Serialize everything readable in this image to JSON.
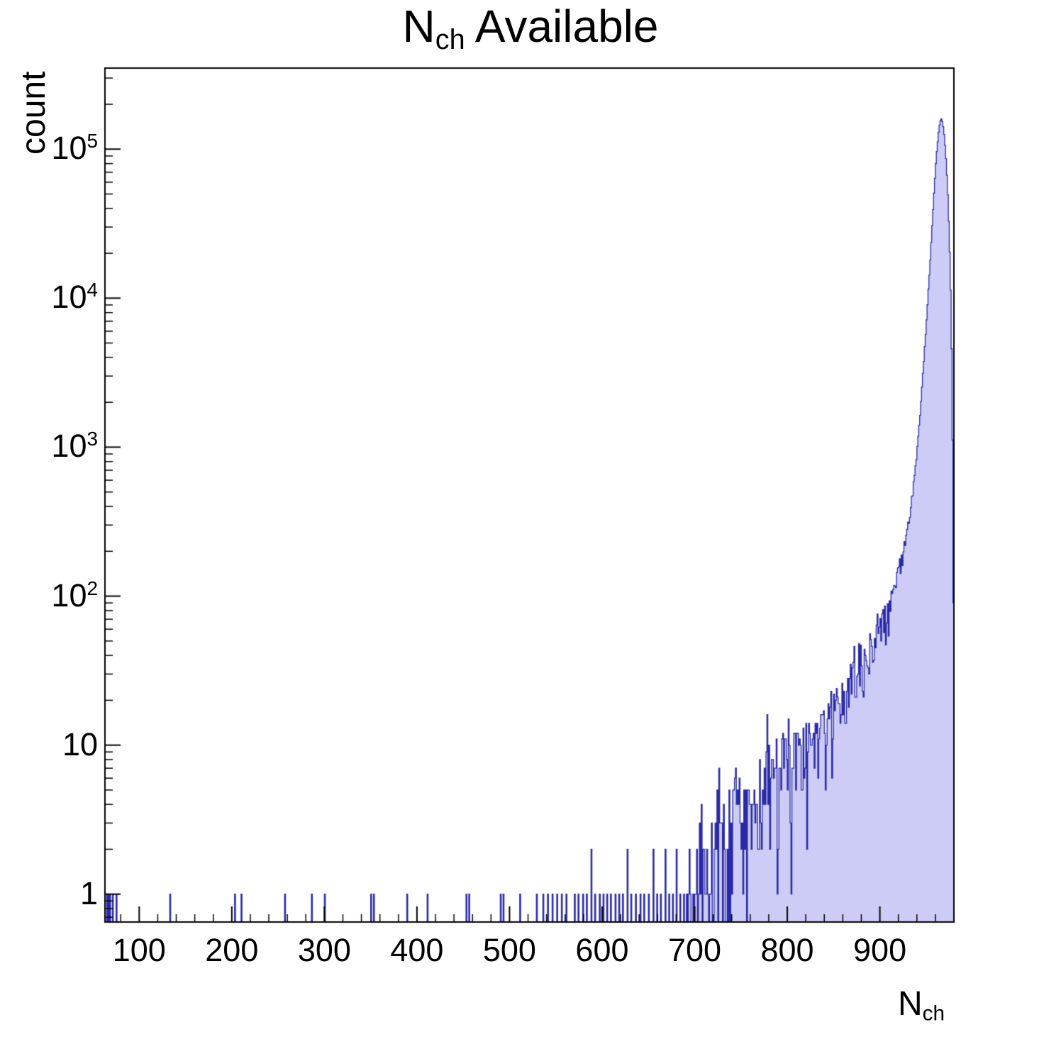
{
  "chart_data": {
    "type": "histogram",
    "title": "N_ch Available",
    "title_parts": {
      "main": "N",
      "sub": "ch",
      "rest": " Available"
    },
    "xlabel": "N_ch",
    "xlabel_parts": {
      "main": "N",
      "sub": "ch"
    },
    "ylabel": "count",
    "x_range": [
      63,
      980
    ],
    "y_range": [
      0.65,
      350000
    ],
    "y_scale": "log",
    "bin_width": 1,
    "x_major_ticks": [
      100,
      200,
      300,
      400,
      500,
      600,
      700,
      800,
      900
    ],
    "x_minor_step": 20,
    "y_major_ticks": [
      1,
      10,
      100,
      1000,
      10000,
      100000
    ],
    "grid": false,
    "legend": "none",
    "peak": {
      "x": 965,
      "count": 160000
    },
    "sparse_bins": [
      [
        63,
        1
      ],
      [
        64,
        1
      ],
      [
        66,
        1
      ],
      [
        68,
        1
      ],
      [
        71,
        1
      ],
      [
        75,
        1
      ],
      [
        133,
        1
      ],
      [
        203,
        1
      ],
      [
        210,
        1
      ],
      [
        257,
        1
      ],
      [
        286,
        1
      ],
      [
        300,
        1
      ],
      [
        350,
        1
      ],
      [
        353,
        1
      ],
      [
        389,
        1
      ],
      [
        411,
        1
      ],
      [
        453,
        1
      ],
      [
        456,
        1
      ],
      [
        490,
        1
      ],
      [
        493,
        1
      ],
      [
        511,
        1
      ],
      [
        529,
        1
      ],
      [
        536,
        1
      ],
      [
        541,
        1
      ],
      [
        546,
        1
      ],
      [
        551,
        1
      ],
      [
        556,
        1
      ],
      [
        561,
        1
      ],
      [
        570,
        1
      ],
      [
        574,
        1
      ],
      [
        579,
        1
      ],
      [
        583,
        1
      ],
      [
        588,
        2
      ],
      [
        592,
        1
      ],
      [
        597,
        1
      ],
      [
        601,
        1
      ],
      [
        605,
        1
      ],
      [
        609,
        1
      ],
      [
        614,
        1
      ],
      [
        618,
        1
      ],
      [
        622,
        1
      ],
      [
        627,
        2
      ],
      [
        631,
        1
      ],
      [
        636,
        1
      ],
      [
        641,
        1
      ],
      [
        645,
        1
      ],
      [
        650,
        1
      ],
      [
        655,
        2
      ],
      [
        659,
        1
      ],
      [
        663,
        1
      ],
      [
        668,
        2
      ],
      [
        672,
        1
      ],
      [
        676,
        1
      ],
      [
        680,
        2
      ],
      [
        684,
        1
      ],
      [
        688,
        1
      ],
      [
        691,
        1
      ]
    ],
    "envelope": [
      [
        693,
        0.9
      ],
      [
        700,
        1.1
      ],
      [
        708,
        1.3
      ],
      [
        716,
        1.6
      ],
      [
        724,
        1.8
      ],
      [
        732,
        2.2
      ],
      [
        740,
        2.6
      ],
      [
        748,
        3.0
      ],
      [
        756,
        3.4
      ],
      [
        764,
        4.0
      ],
      [
        772,
        4.6
      ],
      [
        780,
        5.4
      ],
      [
        788,
        6.2
      ],
      [
        796,
        7.2
      ],
      [
        804,
        8.2
      ],
      [
        812,
        9.0
      ],
      [
        820,
        9.5
      ],
      [
        828,
        10.5
      ],
      [
        836,
        12
      ],
      [
        844,
        14
      ],
      [
        852,
        16
      ],
      [
        860,
        19
      ],
      [
        868,
        24
      ],
      [
        876,
        30
      ],
      [
        884,
        38
      ],
      [
        892,
        48
      ],
      [
        898,
        58
      ],
      [
        904,
        70
      ],
      [
        910,
        88
      ],
      [
        916,
        115
      ],
      [
        922,
        160
      ],
      [
        928,
        240
      ],
      [
        934,
        420
      ],
      [
        940,
        900
      ],
      [
        945,
        2200
      ],
      [
        950,
        6500
      ],
      [
        954,
        16000
      ],
      [
        958,
        45000
      ],
      [
        961,
        90000
      ],
      [
        964,
        140000
      ],
      [
        966,
        162000
      ],
      [
        968,
        150000
      ],
      [
        970,
        118000
      ],
      [
        972,
        78000
      ],
      [
        974,
        42000
      ],
      [
        976,
        16000
      ],
      [
        977,
        8000
      ],
      [
        978,
        2600
      ],
      [
        979,
        500
      ],
      [
        980,
        17
      ]
    ],
    "colors": {
      "fill": "#ccccf6",
      "line": "#2a2aa8",
      "axis": "#000000",
      "background": "#ffffff",
      "text": "#000000"
    }
  }
}
